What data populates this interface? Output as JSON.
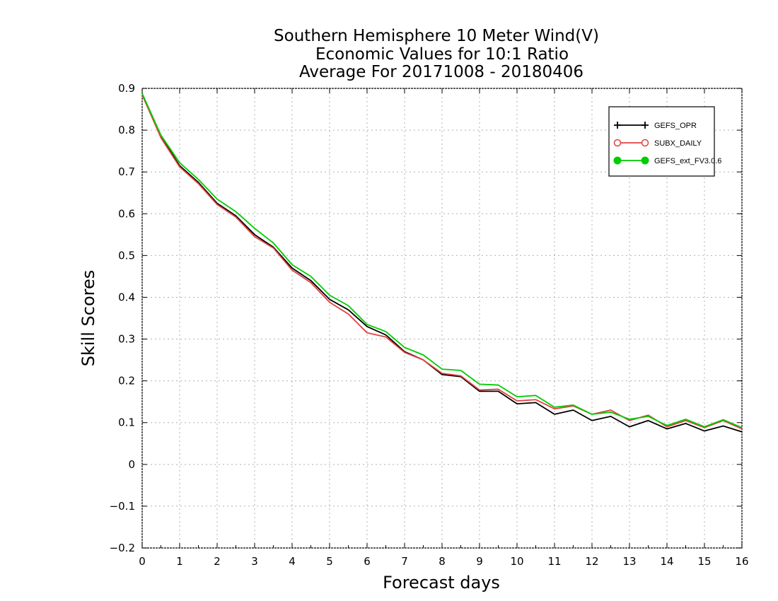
{
  "chart_data": {
    "type": "line",
    "title": [
      "Southern Hemisphere 10 Meter Wind(V)",
      "Economic Values for 10:1 Ratio",
      "Average For 20171008 - 20180406"
    ],
    "xlabel": "Forecast days",
    "ylabel": "Skill Scores",
    "xlim": [
      0,
      16
    ],
    "ylim": [
      -0.2,
      0.9
    ],
    "x_ticks": [
      "0",
      "1",
      "2",
      "3",
      "4",
      "5",
      "6",
      "7",
      "8",
      "9",
      "10",
      "11",
      "12",
      "13",
      "14",
      "15",
      "16"
    ],
    "y_ticks": [
      "0.9",
      "0.8",
      "0.7",
      "0.6",
      "0.5",
      "0.4",
      "0.3",
      "0.2",
      "0.1",
      "0",
      "-0.1",
      "-0.2"
    ],
    "grid": true,
    "legend_position": "top-right",
    "x": [
      0,
      0.5,
      1,
      1.5,
      2,
      2.5,
      3,
      3.5,
      4,
      4.5,
      5,
      5.5,
      6,
      6.5,
      7,
      7.5,
      8,
      8.5,
      9,
      9.5,
      10,
      10.5,
      11,
      11.5,
      12,
      12.5,
      13,
      13.5,
      14,
      14.5,
      15,
      15.5,
      16
    ],
    "series": [
      {
        "name": "GEFS_OPR",
        "color": "#000000",
        "marker": "plus",
        "values": [
          0.885,
          0.785,
          0.715,
          0.675,
          0.625,
          0.595,
          0.55,
          0.52,
          0.47,
          0.44,
          0.395,
          0.37,
          0.33,
          0.31,
          0.27,
          0.25,
          0.215,
          0.21,
          0.175,
          0.175,
          0.145,
          0.148,
          0.12,
          0.13,
          0.105,
          0.115,
          0.09,
          0.105,
          0.085,
          0.098,
          0.08,
          0.092,
          0.078
        ]
      },
      {
        "name": "SUBX_DAILY",
        "color": "#e04040",
        "marker": "open-circle",
        "values": [
          0.885,
          0.782,
          0.712,
          0.672,
          0.622,
          0.592,
          0.545,
          0.518,
          0.465,
          0.435,
          0.388,
          0.36,
          0.315,
          0.305,
          0.268,
          0.25,
          0.218,
          0.212,
          0.178,
          0.18,
          0.152,
          0.155,
          0.133,
          0.14,
          0.12,
          0.13,
          0.105,
          0.118,
          0.09,
          0.105,
          0.088,
          0.105,
          0.085
        ]
      },
      {
        "name": "GEFS_ext_FV3.0.6",
        "color": "#00cc00",
        "marker": "filled-circle",
        "values": [
          0.888,
          0.788,
          0.722,
          0.682,
          0.635,
          0.605,
          0.565,
          0.53,
          0.478,
          0.45,
          0.405,
          0.38,
          0.335,
          0.318,
          0.28,
          0.262,
          0.228,
          0.225,
          0.192,
          0.19,
          0.162,
          0.165,
          0.137,
          0.142,
          0.12,
          0.125,
          0.108,
          0.115,
          0.093,
          0.108,
          0.09,
          0.107,
          0.088
        ]
      }
    ]
  }
}
